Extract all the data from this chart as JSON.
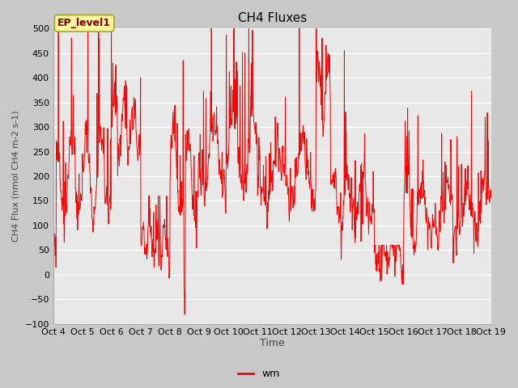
{
  "title": "CH4 Fluxes",
  "ylabel": "CH4 Flux (nmol CH4 m-2 s-1)",
  "xlabel": "Time",
  "legend_label": "wm",
  "annotation": "EP_level1",
  "ylim": [
    -100,
    500
  ],
  "yticks": [
    -100,
    -50,
    0,
    50,
    100,
    150,
    200,
    250,
    300,
    350,
    400,
    450,
    500
  ],
  "line_color": "red",
  "fig_facecolor": "#c8c8c8",
  "axes_facecolor": "#e8e8e8",
  "grid_color": "white",
  "xtick_labels": [
    "Oct 4",
    "Oct 5",
    "Oct 6",
    "Oct 7",
    "Oct 8",
    "Oct 9",
    "Oct 10",
    "Oct 11",
    "Oct 12",
    "Oct 13",
    "Oct 14",
    "Oct 15",
    "Oct 16",
    "Oct 17",
    "Oct 18",
    "Oct 19"
  ],
  "annotation_facecolor": "#f5f5a0",
  "annotation_edgecolor": "#aaa820",
  "annotation_textcolor": "#8b0000",
  "seed": 42
}
